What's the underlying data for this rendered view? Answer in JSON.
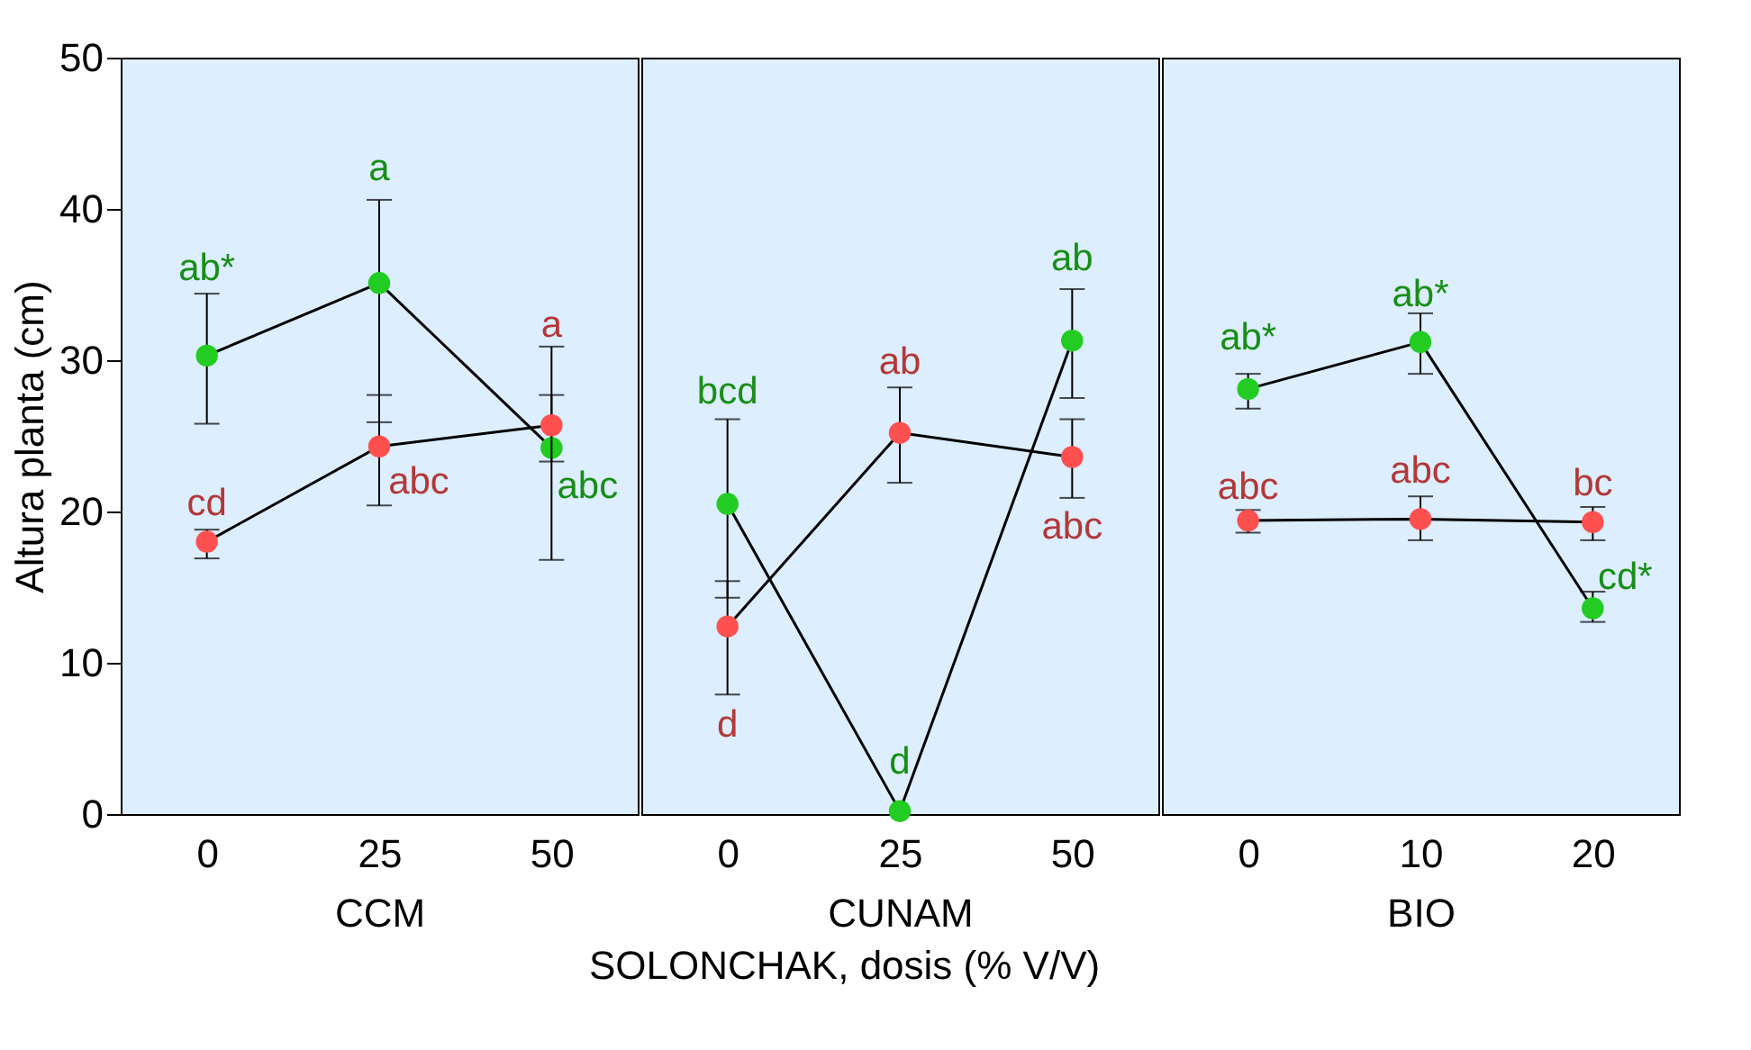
{
  "chart_data": [
    {
      "type": "line",
      "categories": [
        "0",
        "25",
        "50"
      ],
      "xlabel": "CCM",
      "ylabel": "Altura planta (cm)",
      "ylim": [
        0,
        50
      ],
      "yticks": [
        0,
        10,
        20,
        30,
        40,
        50
      ],
      "marker": "circle",
      "grid": false,
      "series": [
        {
          "color": "#22cc22",
          "values": [
            30.3,
            35.1,
            24.2
          ],
          "errors": [
            [
              25.8,
              34.4
            ],
            [
              25.9,
              40.6
            ],
            [
              16.8,
              30.9
            ]
          ],
          "value_labels": [
            "ab*",
            "a",
            "abc"
          ]
        },
        {
          "color": "#ff5050",
          "values": [
            18.0,
            24.3,
            25.7
          ],
          "errors": [
            [
              16.9,
              18.8
            ],
            [
              20.4,
              27.7
            ],
            [
              23.3,
              27.7
            ]
          ],
          "value_labels": [
            "cd",
            "abc",
            "a"
          ]
        }
      ]
    },
    {
      "type": "line",
      "categories": [
        "0",
        "25",
        "50"
      ],
      "xlabel": "CUNAM",
      "ylim": [
        0,
        50
      ],
      "yticks": [
        0,
        10,
        20,
        30,
        40,
        50
      ],
      "tick_labels": "x",
      "marker": "circle",
      "grid": false,
      "series": [
        {
          "color": "#22cc22",
          "values": [
            20.5,
            0.2,
            31.3
          ],
          "errors": [
            [
              14.3,
              26.1
            ],
            null,
            [
              27.5,
              34.7
            ]
          ],
          "value_labels": [
            "bcd",
            "d",
            "ab"
          ]
        },
        {
          "color": "#ff5050",
          "values": [
            12.4,
            25.2,
            23.6
          ],
          "errors": [
            [
              7.9,
              15.4
            ],
            [
              21.9,
              28.2
            ],
            [
              20.9,
              26.1
            ]
          ],
          "value_labels": [
            "d",
            "ab",
            "abc"
          ]
        }
      ],
      "annotations": [
        "SOLONCHAK, dosis (% V/V)"
      ]
    },
    {
      "type": "line",
      "categories": [
        "0",
        "10",
        "20"
      ],
      "xlabel": "BIO",
      "ylim": [
        0,
        50
      ],
      "yticks": [
        0,
        10,
        20,
        30,
        40,
        50
      ],
      "tick_labels": "x",
      "marker": "circle",
      "grid": false,
      "series": [
        {
          "color": "#22cc22",
          "values": [
            28.1,
            31.2,
            13.6
          ],
          "errors": [
            [
              26.8,
              29.1
            ],
            [
              29.1,
              33.1
            ],
            [
              12.7,
              14.7
            ]
          ],
          "value_labels": [
            "ab*",
            "ab*",
            "cd*"
          ]
        },
        {
          "color": "#ff5050",
          "values": [
            19.4,
            19.5,
            19.3
          ],
          "errors": [
            [
              18.6,
              20.1
            ],
            [
              18.1,
              21.0
            ],
            [
              18.1,
              20.3
            ]
          ],
          "value_labels": [
            "abc",
            "abc",
            "bc"
          ]
        }
      ]
    }
  ]
}
